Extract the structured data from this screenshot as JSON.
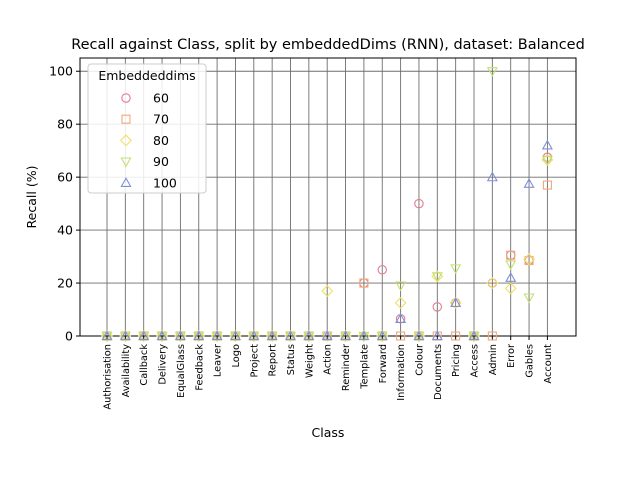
{
  "chart_data": {
    "type": "scatter",
    "title": "Recall against Class, split by embeddedDims (RNN), dataset: Balanced",
    "xlabel": "Class",
    "ylabel": "Recall (%)",
    "ylim": [
      0,
      105
    ],
    "yticks": [
      0,
      20,
      40,
      60,
      80,
      100
    ],
    "grid": true,
    "legend": {
      "title": "Embeddeddims",
      "placement": "top-left"
    },
    "categories": [
      "Authorisation",
      "Availability",
      "Callback",
      "Delivery",
      "EqualGlass",
      "Feedback",
      "Leaver",
      "Logo",
      "Project",
      "Report",
      "Status",
      "Weight",
      "Action",
      "Reminder",
      "Template",
      "Forward",
      "Information",
      "Colour",
      "Documents",
      "Pricing",
      "Access",
      "Admin",
      "Error",
      "Gables",
      "Account"
    ],
    "series": [
      {
        "name": "60",
        "marker": "circle",
        "color": "#e07b91",
        "values": [
          0,
          0,
          0,
          0,
          0,
          0,
          0,
          0,
          0,
          0,
          0,
          0,
          0,
          0,
          20,
          25,
          6.5,
          50,
          11,
          12.5,
          0,
          20,
          30.5,
          28.5,
          67.5
        ]
      },
      {
        "name": "70",
        "marker": "square",
        "color": "#f0a878",
        "values": [
          0,
          0,
          0,
          0,
          0,
          0,
          0,
          0,
          0,
          0,
          0,
          0,
          0,
          0,
          20,
          0,
          0,
          0,
          0,
          0,
          0,
          0,
          30.5,
          28.5,
          57
        ]
      },
      {
        "name": "80",
        "marker": "diamond",
        "color": "#f0e060",
        "values": [
          0,
          0,
          0,
          0,
          0,
          0,
          0,
          0,
          0,
          0,
          0,
          0,
          17,
          0,
          0,
          0,
          12.5,
          0,
          22.5,
          12.5,
          0,
          20,
          18,
          29,
          66.5
        ]
      },
      {
        "name": "90",
        "marker": "triangle-down",
        "color": "#c4e070",
        "values": [
          0,
          0,
          0,
          0,
          0,
          0,
          0,
          0,
          0,
          0,
          0,
          0,
          0,
          0,
          0,
          0,
          19,
          0,
          22.5,
          25.5,
          0,
          100,
          27,
          14.5,
          66.5
        ]
      },
      {
        "name": "100",
        "marker": "triangle-up",
        "color": "#8090d8",
        "values": [
          0,
          0,
          0,
          0,
          0,
          0,
          0,
          0,
          0,
          0,
          0,
          0,
          0,
          0,
          0,
          0,
          6.5,
          0,
          0,
          12.5,
          0,
          60,
          22,
          57.5,
          72
        ]
      }
    ]
  }
}
